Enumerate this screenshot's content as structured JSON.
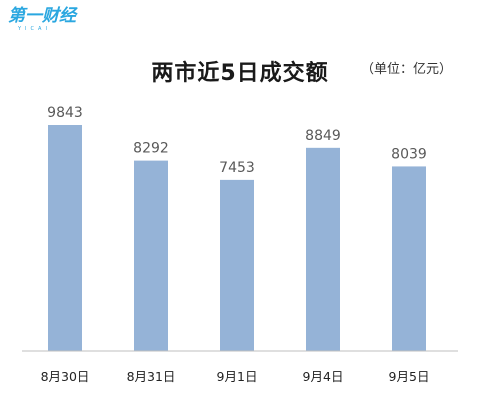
{
  "logo": {
    "text": "第一财经",
    "sub": "YICAI"
  },
  "chart_data": {
    "type": "bar",
    "title": "两市近5日成交额",
    "unit_note": "（单位：亿元）",
    "categories": [
      "8月30日",
      "8月31日",
      "9月1日",
      "9月4日",
      "9月5日"
    ],
    "values": [
      9843,
      8292,
      7453,
      8849,
      8039
    ],
    "data_labels": [
      "9843",
      "8292",
      "7453",
      "8849",
      "8039"
    ],
    "xlabel": "",
    "ylabel": "",
    "ylim": [
      0,
      10000
    ],
    "grid": false,
    "bar_color": "#95b3d7"
  }
}
